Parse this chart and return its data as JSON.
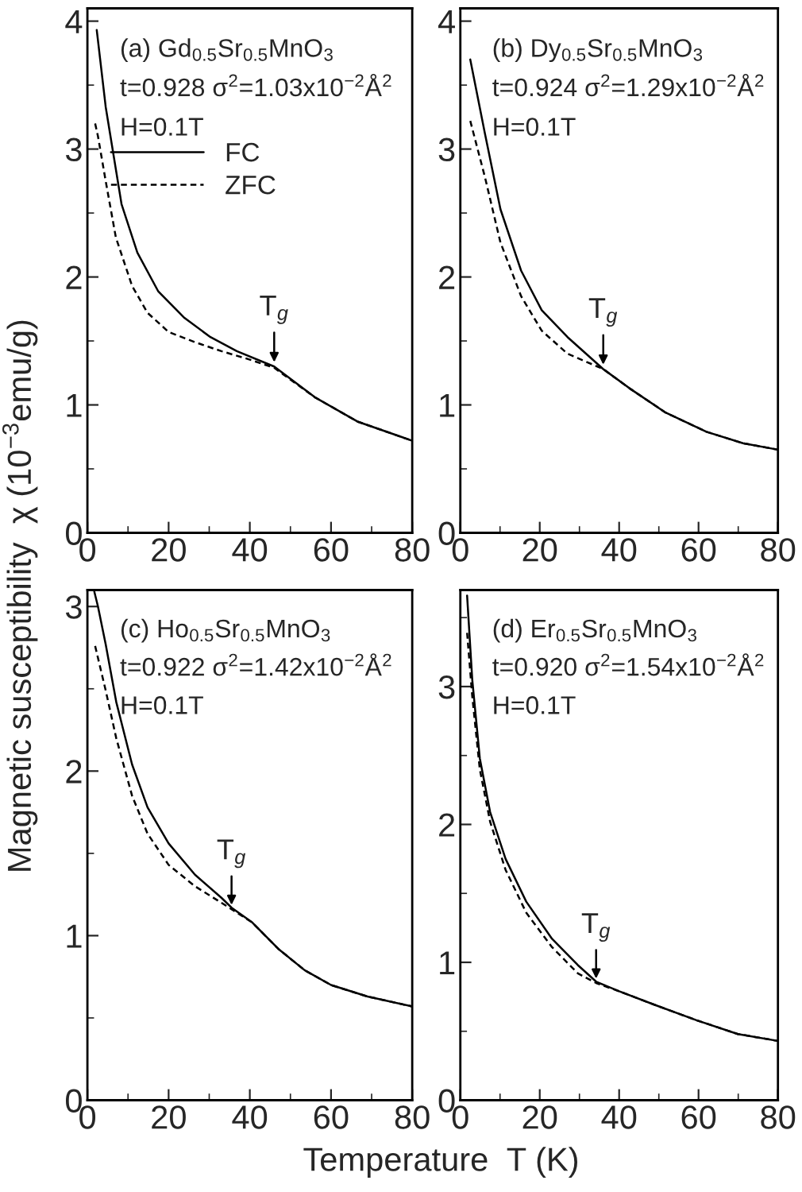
{
  "chart_data": [
    {
      "type": "line",
      "ylabel": "Magnetic susceptibility  χ (10$^{−3}$emu/g)",
      "xlim": [
        0,
        80
      ],
      "xticks": [
        0,
        20,
        40,
        60,
        80
      ],
      "ylim": [
        0,
        4.1
      ],
      "yticks": [
        0,
        1,
        2,
        3,
        4
      ],
      "legend": "top left",
      "grid": false,
      "annotations": [
        "(a) Gd$_{0.5}$Sr$_{0.5}$MnO$_{3}$",
        "t=0.928 σ$^{2}$=1.03x10$^{−2}$Å$^{2}$",
        "H=0.1T",
        {
          "text": "T$_{g}$",
          "x": 46,
          "y": 1.3
        }
      ],
      "series": [
        {
          "name": "FC",
          "color": "#000000",
          "line_style": "solid",
          "x": [
            2.3,
            4.5,
            8.4,
            12.3,
            17.4,
            23.9,
            30.3,
            36.8,
            46,
            56,
            66.5,
            80
          ],
          "values": [
            3.93,
            3.33,
            2.57,
            2.19,
            1.89,
            1.68,
            1.53,
            1.42,
            1.3,
            1.06,
            0.87,
            0.72
          ]
        },
        {
          "name": "ZFC",
          "color": "#000000",
          "line_style": "dashed",
          "x": [
            1.9,
            2.6,
            4.5,
            7,
            11,
            14.8,
            20,
            26.5,
            33,
            39.4,
            46,
            56,
            66.5,
            80
          ],
          "values": [
            3.2,
            3.1,
            2.75,
            2.31,
            1.93,
            1.72,
            1.57,
            1.49,
            1.42,
            1.36,
            1.29,
            1.06,
            0.87,
            0.72
          ]
        }
      ]
    },
    {
      "type": "line",
      "xlim": [
        0,
        80
      ],
      "xticks": [
        0,
        20,
        40,
        60,
        80
      ],
      "ylim": [
        0,
        4.1
      ],
      "yticks": [
        0,
        1,
        2,
        3,
        4
      ],
      "grid": false,
      "annotations": [
        "(b) Dy$_{0.5}$Sr$_{0.5}$MnO$_{3}$",
        "t=0.924 σ$^{2}$=1.29x10$^{−2}$Å$^{2}$",
        "H=0.1T",
        {
          "text": "T$_{g}$",
          "x": 36,
          "y": 1.28
        }
      ],
      "series": [
        {
          "color": "#000000",
          "line_style": "solid",
          "x": [
            2.5,
            6.2,
            10.1,
            15.3,
            20.5,
            27,
            36,
            42.6,
            51.7,
            62,
            71.2,
            80
          ],
          "values": [
            3.7,
            3.12,
            2.53,
            2.05,
            1.74,
            1.53,
            1.28,
            1.13,
            0.94,
            0.79,
            0.7,
            0.65
          ]
        },
        {
          "color": "#000000",
          "line_style": "dashed",
          "x": [
            2.5,
            6.2,
            10.1,
            15.3,
            20.5,
            27,
            36,
            42.6,
            51.7,
            62,
            71.2,
            80
          ],
          "values": [
            3.22,
            2.78,
            2.27,
            1.85,
            1.58,
            1.4,
            1.28,
            1.13,
            0.94,
            0.79,
            0.7,
            0.65
          ]
        }
      ]
    },
    {
      "type": "line",
      "xlabel": "Temperature  T (K)",
      "xlim": [
        0,
        80
      ],
      "xticks": [
        0,
        20,
        40,
        60,
        80
      ],
      "ylim": [
        0,
        3.1
      ],
      "yticks": [
        0,
        1,
        2,
        3
      ],
      "grid": false,
      "annotations": [
        "(c) Ho$_{0.5}$Sr$_{0.5}$MnO$_{3}$",
        "t=0.922 σ$^{2}$=1.42x10$^{−2}$Å$^{2}$",
        "H=0.1T",
        {
          "text": "T$_{g}$",
          "x": 35.5,
          "y": 1.16
        }
      ],
      "series": [
        {
          "color": "#000000",
          "line_style": "solid",
          "x": [
            1.7,
            2.6,
            4.5,
            7.1,
            11,
            14.8,
            20,
            26.5,
            33,
            35.5,
            40.6,
            47,
            53.5,
            60,
            69,
            80
          ],
          "values": [
            3.09,
            3.0,
            2.77,
            2.42,
            2.04,
            1.78,
            1.56,
            1.37,
            1.23,
            1.17,
            1.08,
            0.92,
            0.79,
            0.7,
            0.63,
            0.57
          ]
        },
        {
          "color": "#000000",
          "line_style": "dashed",
          "x": [
            1.9,
            4.5,
            7.1,
            11,
            14.8,
            20,
            26.5,
            33,
            35.5,
            40.6,
            47,
            53.5,
            60,
            69,
            80
          ],
          "values": [
            2.76,
            2.49,
            2.2,
            1.85,
            1.62,
            1.43,
            1.3,
            1.2,
            1.16,
            1.08,
            0.92,
            0.79,
            0.7,
            0.63,
            0.57
          ]
        }
      ]
    },
    {
      "type": "line",
      "xlim": [
        0,
        80
      ],
      "xticks": [
        0,
        20,
        40,
        60,
        80
      ],
      "ylim": [
        0,
        3.7
      ],
      "yticks": [
        0,
        1,
        2,
        3
      ],
      "grid": false,
      "annotations": [
        "(d) Er$_{0.5}$Sr$_{0.5}$MnO$_{3}$",
        "t=0.920 σ$^{2}$=1.54x10$^{−2}$Å$^{2}$",
        "H=0.1T",
        {
          "text": "T$_{g}$",
          "x": 34.2,
          "y": 0.85
        }
      ],
      "series": [
        {
          "color": "#000000",
          "line_style": "solid",
          "x": [
            1.7,
            3,
            4.9,
            7.5,
            11.4,
            16.6,
            23.1,
            29.6,
            34.2,
            40,
            49.1,
            59.5,
            69.9,
            80
          ],
          "values": [
            3.66,
            3.05,
            2.48,
            2.09,
            1.75,
            1.44,
            1.17,
            0.98,
            0.86,
            0.79,
            0.69,
            0.58,
            0.48,
            0.43
          ]
        },
        {
          "color": "#000000",
          "line_style": "dashed",
          "x": [
            1.7,
            3,
            4.9,
            7.5,
            11.4,
            16.6,
            23.1,
            29.6,
            34.2,
            40,
            49.1,
            59.5,
            69.9,
            80
          ],
          "values": [
            3.39,
            2.93,
            2.4,
            2.02,
            1.67,
            1.36,
            1.11,
            0.92,
            0.85,
            0.79,
            0.69,
            0.58,
            0.48,
            0.43
          ]
        }
      ]
    }
  ]
}
